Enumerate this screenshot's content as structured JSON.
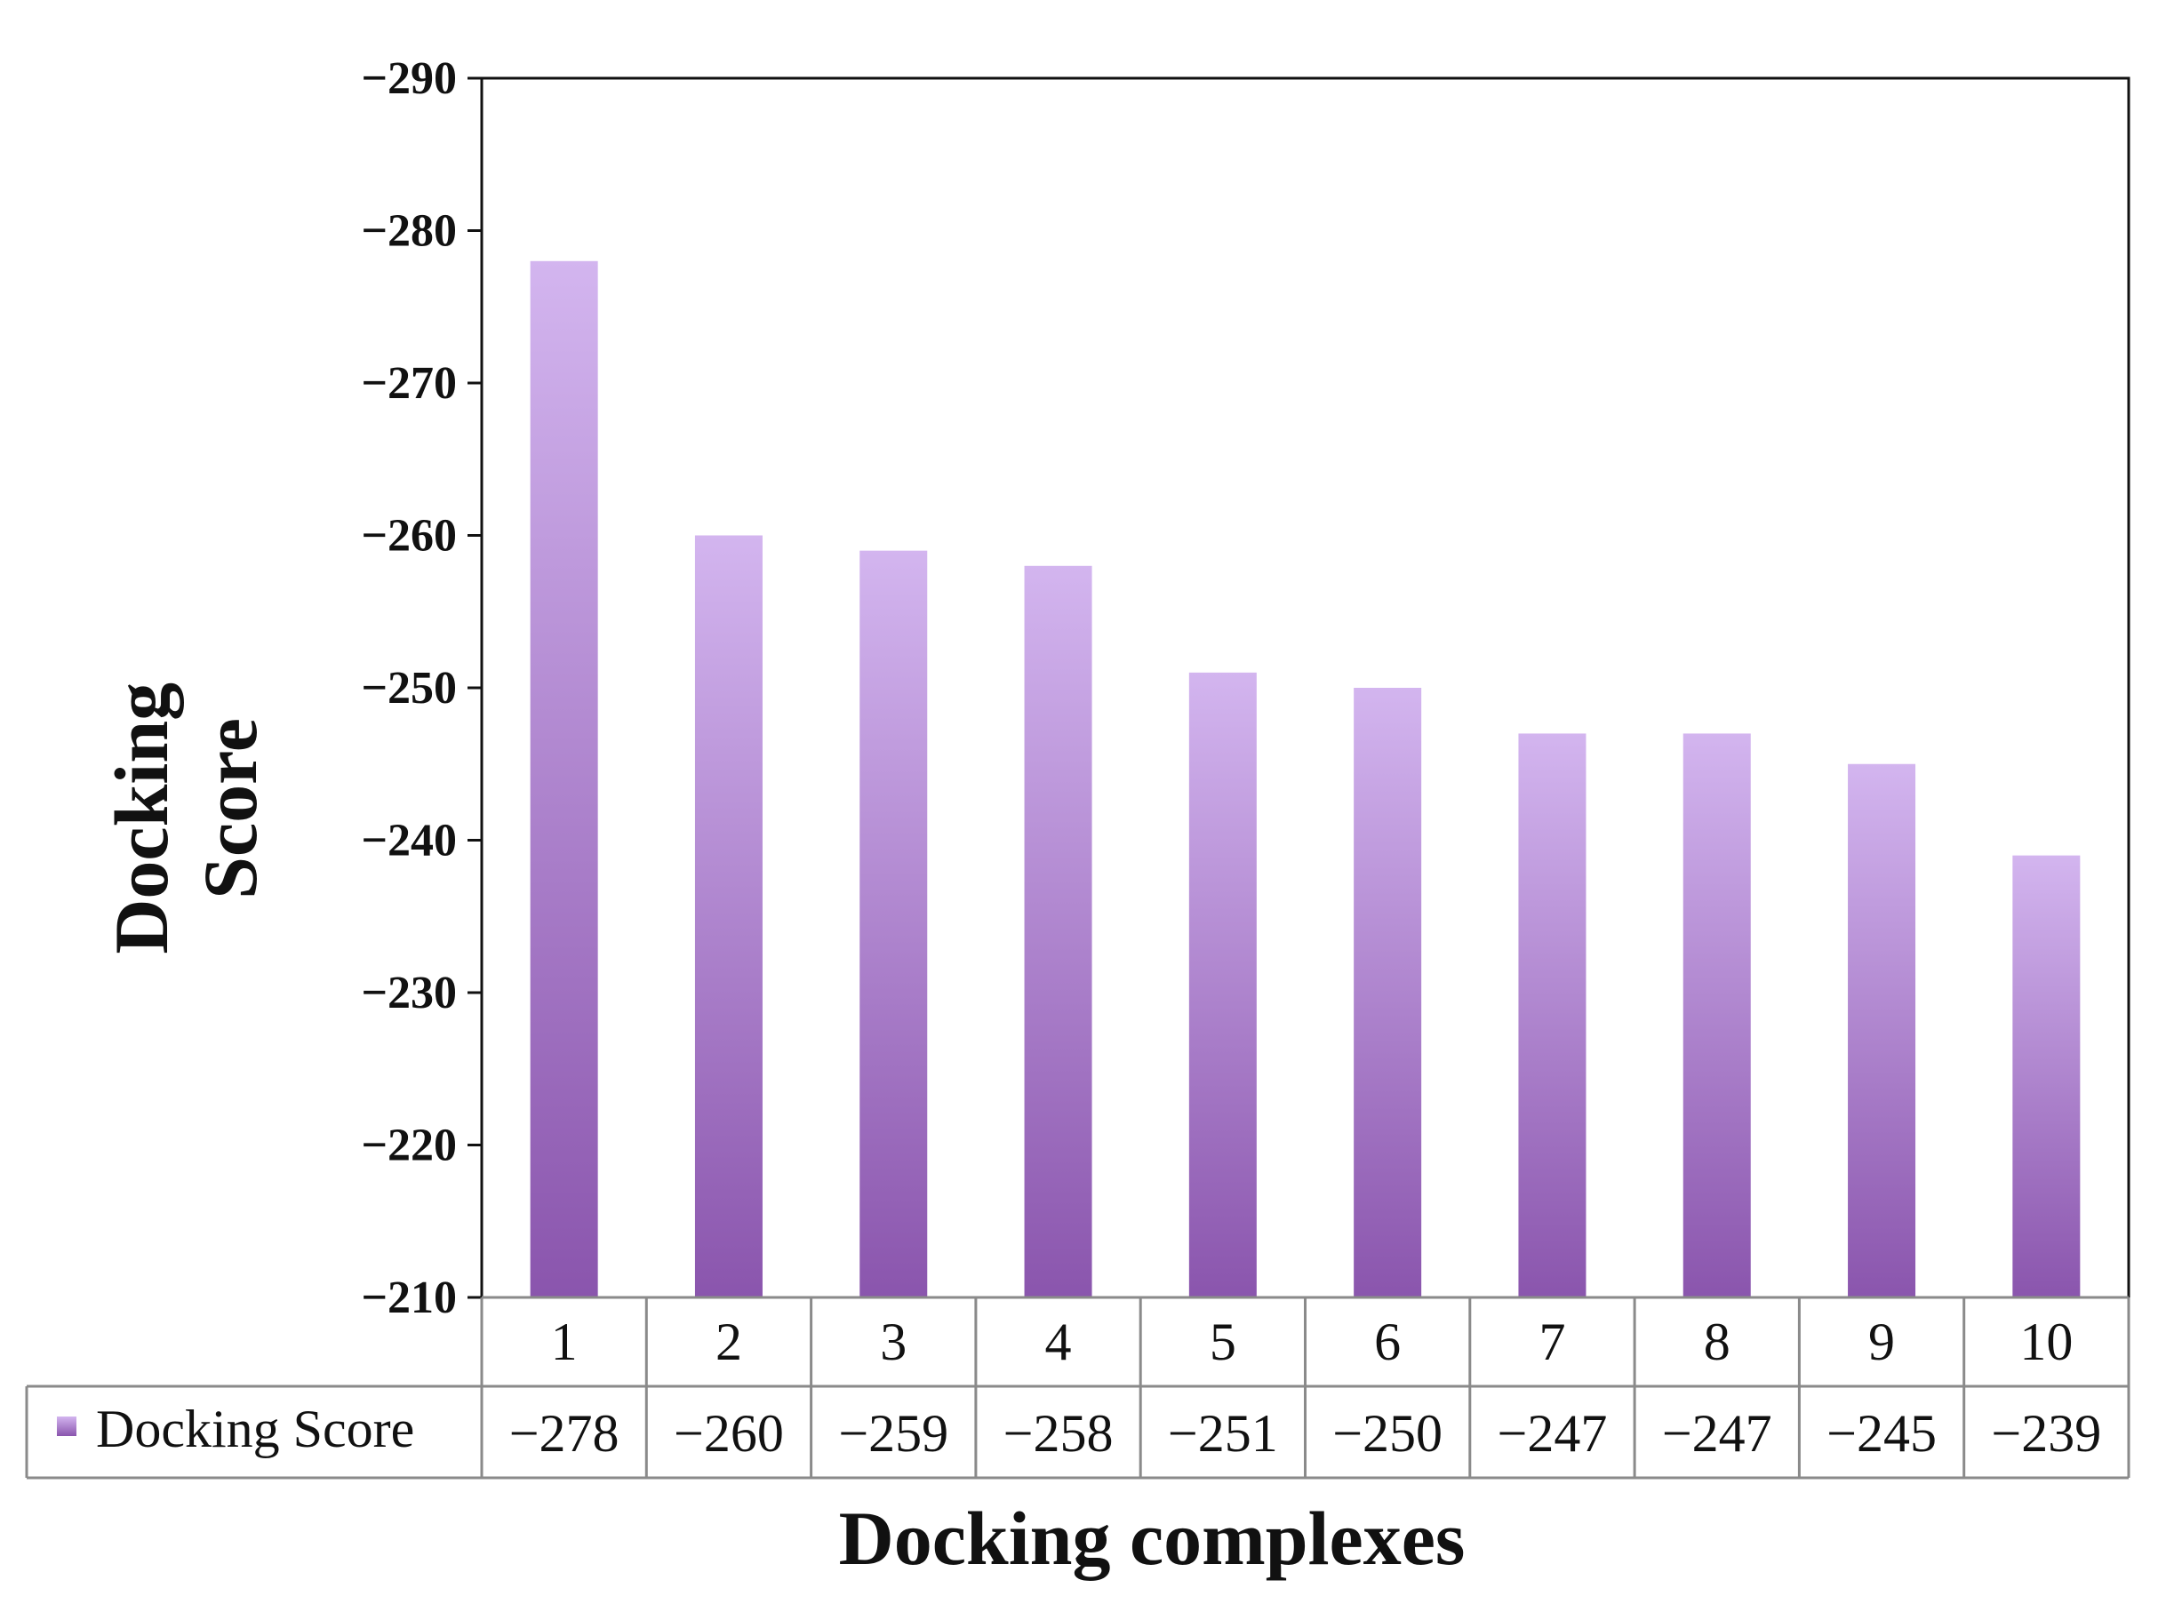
{
  "chart_data": {
    "type": "bar",
    "categories": [
      "1",
      "2",
      "3",
      "4",
      "5",
      "6",
      "7",
      "8",
      "9",
      "10"
    ],
    "series": [
      {
        "name": "Docking Score",
        "values": [
          -278,
          -260,
          -259,
          -258,
          -251,
          -250,
          -247,
          -247,
          -245,
          -239
        ],
        "value_labels": [
          "−278",
          "−260",
          "−259",
          "−258",
          "−251",
          "−250",
          "−247",
          "−247",
          "−245",
          "−239"
        ]
      }
    ],
    "xlabel": "Docking complexes",
    "ylabel_lines": [
      "Docking",
      "Score"
    ],
    "ylim": [
      -210,
      -290
    ],
    "y_axis_reversed": true,
    "yticks": [
      -290,
      -280,
      -270,
      -260,
      -250,
      -240,
      -230,
      -220,
      -210
    ],
    "ytick_labels": [
      "−290",
      "−280",
      "−270",
      "−260",
      "−250",
      "−240",
      "−230",
      "−220",
      "−210"
    ],
    "legend_placement": "data table below chart",
    "grid": false,
    "colors": {
      "bar_top": "#d3b5ef",
      "bar_bottom": "#8a55ad"
    }
  }
}
